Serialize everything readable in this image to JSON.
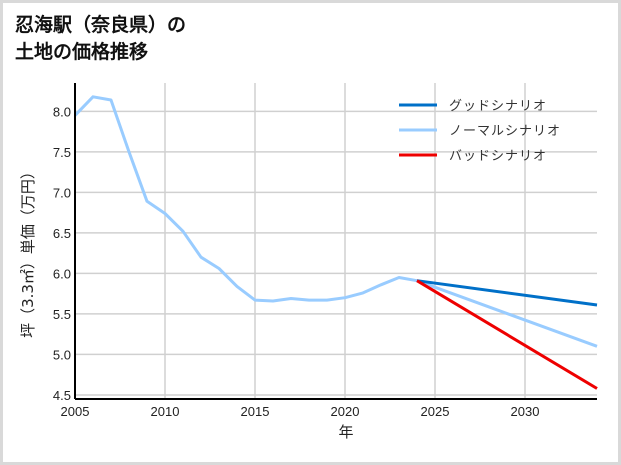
{
  "title": "忍海駅（奈良県）の\n土地の価格推移",
  "chart_data": {
    "type": "line",
    "title": "忍海駅（奈良県）の土地の価格推移",
    "xlabel": "年",
    "ylabel": "坪（3.3㎡）単価（万円）",
    "xlim": [
      2005,
      2034
    ],
    "ylim": [
      4.45,
      8.35
    ],
    "xticks": [
      2005,
      2010,
      2015,
      2020,
      2025,
      2030
    ],
    "yticks": [
      4.5,
      5.0,
      5.5,
      6.0,
      6.5,
      7.0,
      7.5,
      8.0
    ],
    "grid": true,
    "legend_position": "upper right",
    "series": [
      {
        "name": "グッドシナリオ",
        "color": "#0070c8",
        "x": [
          2024,
          2034
        ],
        "values": [
          5.91,
          5.61
        ]
      },
      {
        "name": "ノーマルシナリオ",
        "color": "#99ccff",
        "x": [
          2005,
          2006,
          2007,
          2008,
          2009,
          2010,
          2011,
          2012,
          2013,
          2014,
          2015,
          2016,
          2017,
          2018,
          2019,
          2020,
          2021,
          2022,
          2023,
          2024,
          2034
        ],
        "values": [
          7.95,
          8.18,
          8.14,
          7.5,
          6.89,
          6.74,
          6.52,
          6.2,
          6.06,
          5.84,
          5.67,
          5.66,
          5.69,
          5.67,
          5.67,
          5.7,
          5.76,
          5.86,
          5.95,
          5.91,
          5.1
        ]
      },
      {
        "name": "バッドシナリオ",
        "color": "#ee0000",
        "x": [
          2024,
          2034
        ],
        "values": [
          5.91,
          4.58
        ]
      }
    ]
  }
}
